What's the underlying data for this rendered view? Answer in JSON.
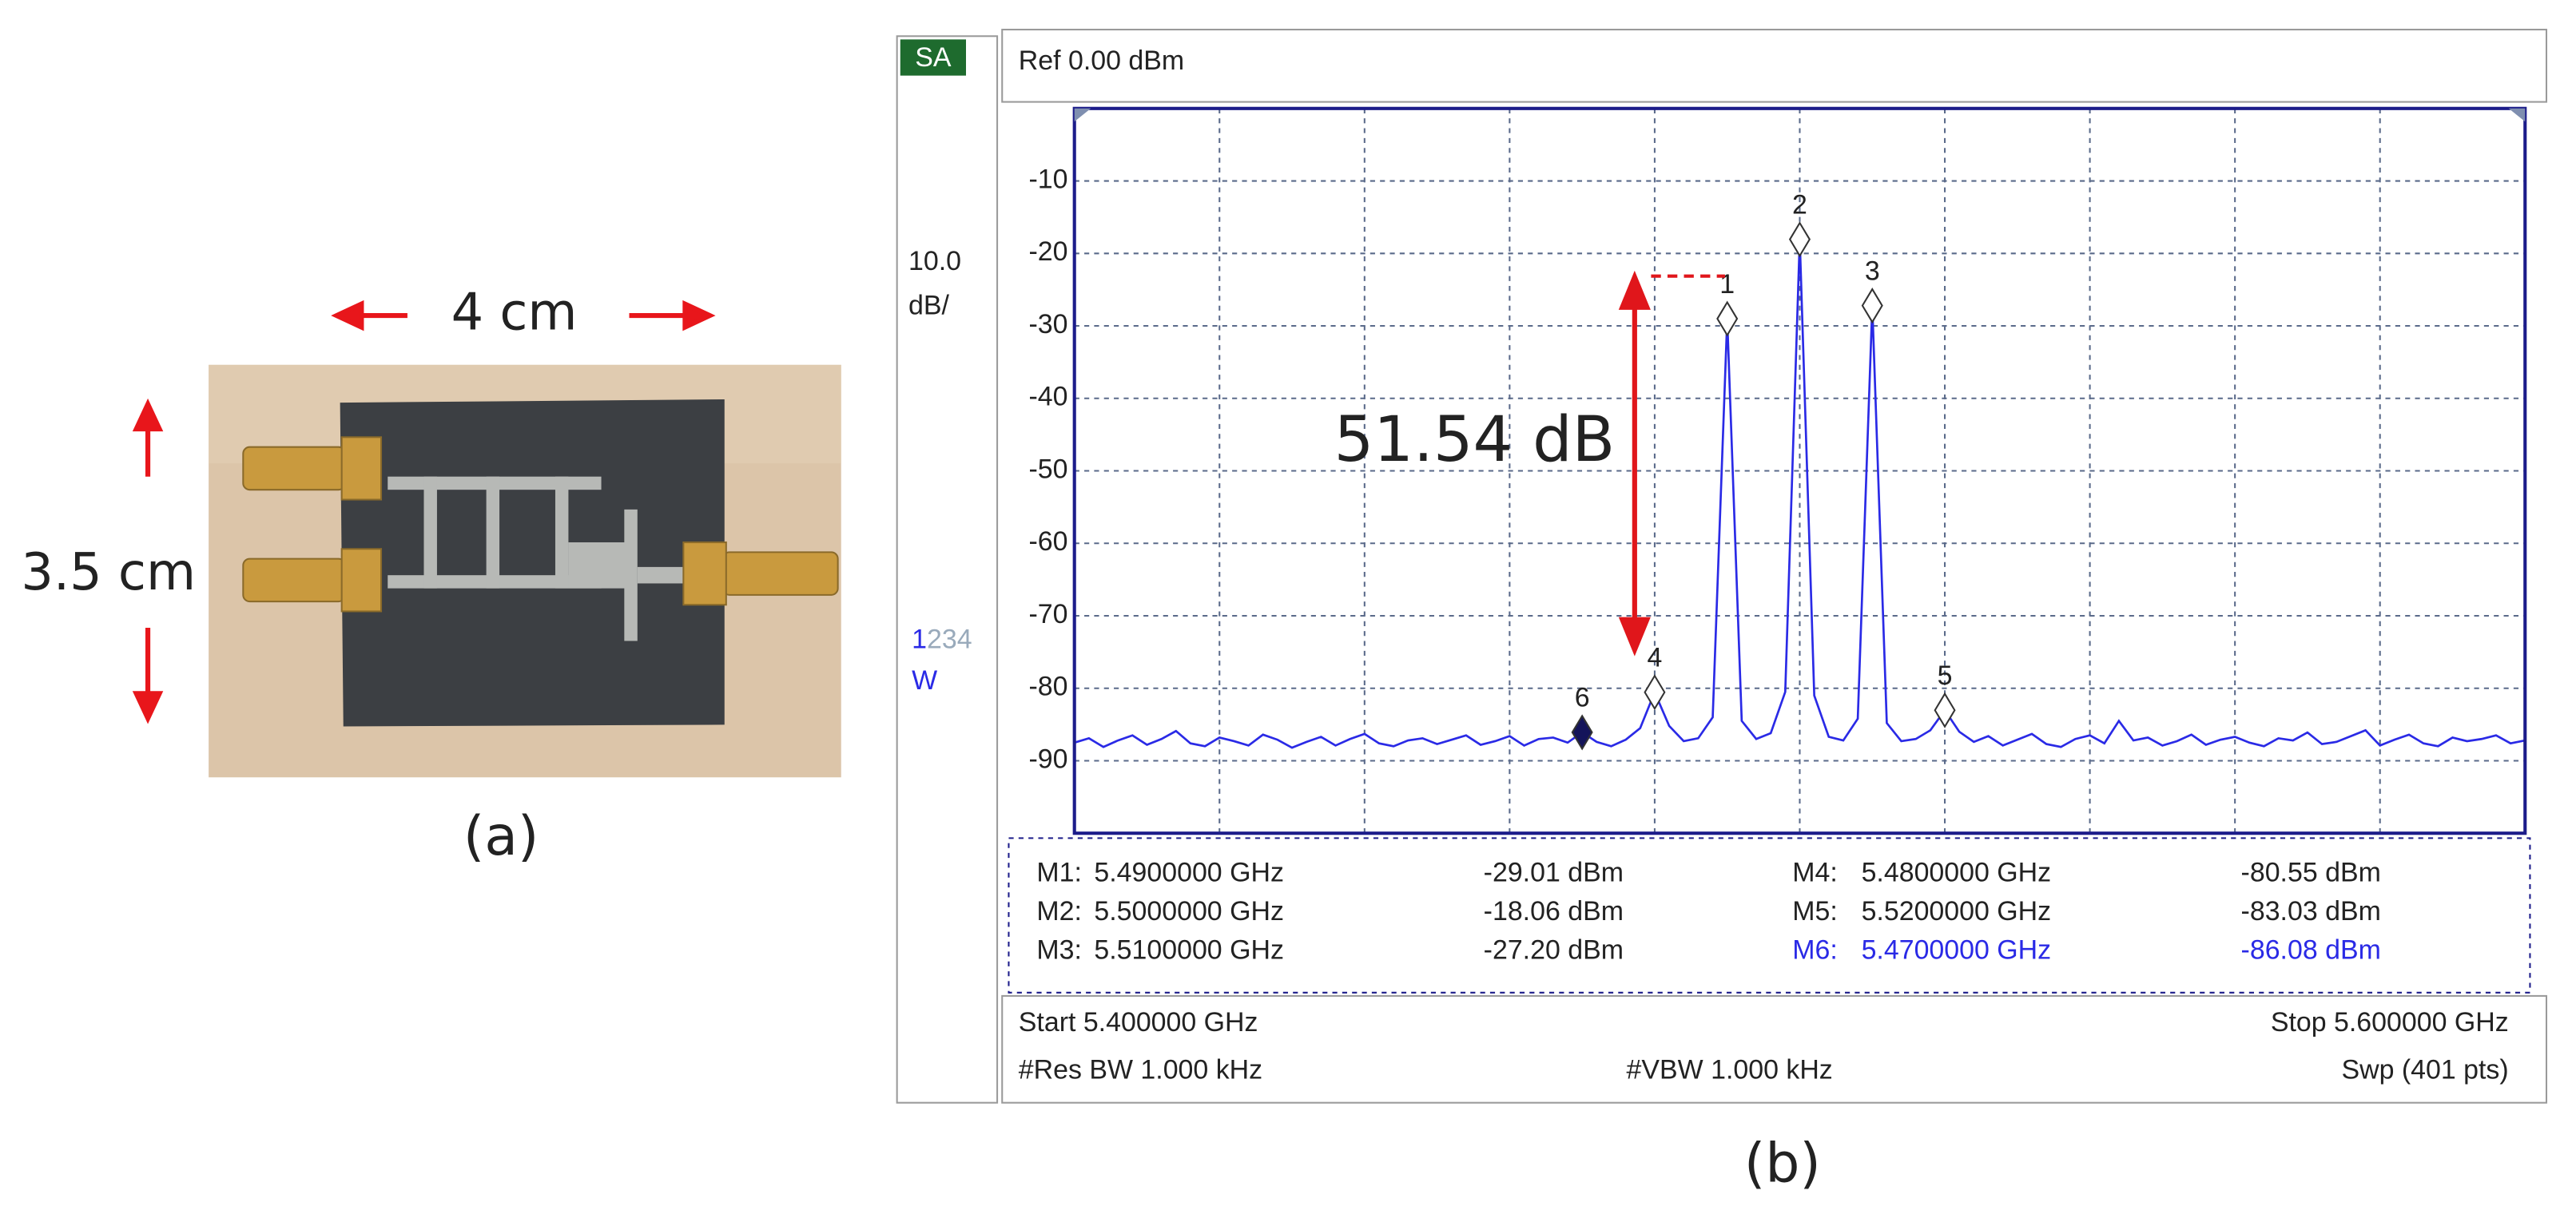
{
  "panel_a": {
    "width_label": "4 cm",
    "height_label": "3.5 cm",
    "caption": "(a)"
  },
  "chart_data": {
    "type": "line",
    "mode": "SA",
    "reference": "Ref 0.00 dBm",
    "scale": "10.0",
    "scale_unit": "dB/",
    "trace_labels": [
      "1",
      "2",
      "3",
      "4"
    ],
    "trace_mode": "W",
    "annotation": "51.54 dB",
    "color": "#2a2ae6",
    "x": [
      5.4,
      5.402,
      5.404,
      5.406,
      5.408,
      5.41,
      5.412,
      5.414,
      5.416,
      5.418,
      5.42,
      5.422,
      5.424,
      5.426,
      5.428,
      5.43,
      5.432,
      5.434,
      5.436,
      5.438,
      5.44,
      5.442,
      5.444,
      5.446,
      5.448,
      5.45,
      5.452,
      5.454,
      5.456,
      5.458,
      5.46,
      5.462,
      5.464,
      5.466,
      5.468,
      5.47,
      5.472,
      5.474,
      5.476,
      5.478,
      5.48,
      5.482,
      5.484,
      5.486,
      5.488,
      5.49,
      5.492,
      5.494,
      5.496,
      5.498,
      5.5,
      5.502,
      5.504,
      5.506,
      5.508,
      5.51,
      5.512,
      5.514,
      5.516,
      5.518,
      5.52,
      5.522,
      5.524,
      5.526,
      5.528,
      5.53,
      5.532,
      5.534,
      5.536,
      5.538,
      5.54,
      5.542,
      5.544,
      5.546,
      5.548,
      5.55,
      5.552,
      5.554,
      5.556,
      5.558,
      5.56,
      5.562,
      5.564,
      5.566,
      5.568,
      5.57,
      5.572,
      5.574,
      5.576,
      5.578,
      5.58,
      5.582,
      5.584,
      5.586,
      5.588,
      5.59,
      5.592,
      5.594,
      5.596,
      5.598,
      5.6
    ],
    "values": [
      -87.5,
      -86.9,
      -88.1,
      -87.2,
      -86.5,
      -87.8,
      -87.0,
      -85.9,
      -87.6,
      -88.0,
      -86.8,
      -87.3,
      -87.9,
      -86.4,
      -87.1,
      -88.2,
      -87.4,
      -86.7,
      -87.9,
      -87.0,
      -86.3,
      -87.6,
      -88.0,
      -87.2,
      -86.9,
      -87.7,
      -87.1,
      -86.5,
      -87.8,
      -87.3,
      -86.6,
      -87.9,
      -87.0,
      -86.8,
      -87.5,
      -86.08,
      -87.4,
      -88.0,
      -87.1,
      -85.5,
      -80.55,
      -85.2,
      -87.3,
      -86.9,
      -84.0,
      -29.01,
      -84.5,
      -87.0,
      -86.2,
      -80.5,
      -18.06,
      -81.0,
      -86.7,
      -87.2,
      -84.2,
      -27.2,
      -84.8,
      -87.3,
      -87.0,
      -85.8,
      -83.03,
      -86.0,
      -87.4,
      -86.6,
      -87.9,
      -87.1,
      -86.3,
      -87.7,
      -88.1,
      -87.0,
      -86.5,
      -87.6,
      -84.5,
      -87.2,
      -86.8,
      -87.9,
      -87.3,
      -86.4,
      -87.8,
      -87.1,
      -86.7,
      -87.5,
      -88.0,
      -86.9,
      -87.2,
      -86.1,
      -87.7,
      -87.4,
      -86.6,
      -85.8,
      -87.9,
      -87.1,
      -86.4,
      -87.6,
      -88.0,
      -86.8,
      -87.3,
      -87.0,
      -86.5,
      -87.6,
      -87.2
    ],
    "xlim": [
      5.4,
      5.6
    ],
    "ylim": [
      -100,
      0
    ],
    "xticks": [
      5.42,
      5.44,
      5.46,
      5.48,
      5.5,
      5.52,
      5.54,
      5.56,
      5.58
    ],
    "yticks": [
      -10,
      -20,
      -30,
      -40,
      -50,
      -60,
      -70,
      -80,
      -90
    ],
    "grid": true,
    "markers": [
      {
        "label": "1",
        "name": "M1:",
        "freq": "5.4900000 GHz",
        "x": 5.49,
        "value": -29.01,
        "value_label": "-29.01 dBm",
        "active": false
      },
      {
        "label": "2",
        "name": "M2:",
        "freq": "5.5000000 GHz",
        "x": 5.5,
        "value": -18.06,
        "value_label": "-18.06 dBm",
        "active": false
      },
      {
        "label": "3",
        "name": "M3:",
        "freq": "5.5100000 GHz",
        "x": 5.51,
        "value": -27.2,
        "value_label": "-27.20 dBm",
        "active": false
      },
      {
        "label": "4",
        "name": "M4:",
        "freq": "5.4800000 GHz",
        "x": 5.48,
        "value": -80.55,
        "value_label": "-80.55 dBm",
        "active": false
      },
      {
        "label": "5",
        "name": "M5:",
        "freq": "5.5200000 GHz",
        "x": 5.52,
        "value": -83.03,
        "value_label": "-83.03 dBm",
        "active": false
      },
      {
        "label": "6",
        "name": "M6:",
        "freq": "5.4700000 GHz",
        "x": 5.47,
        "value": -86.08,
        "value_label": "-86.08 dBm",
        "active": true
      }
    ],
    "start": "Start 5.400000 GHz",
    "stop": "Stop 5.600000 GHz",
    "res_bw": "#Res BW 1.000 kHz",
    "vbw": "#VBW 1.000 kHz",
    "sweep": "Swp (401 pts)",
    "caption": "(b)"
  }
}
